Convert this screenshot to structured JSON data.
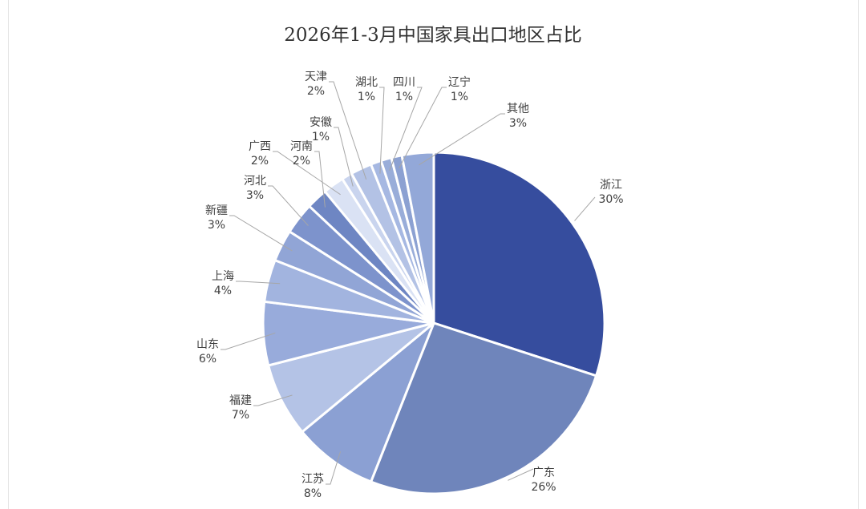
{
  "chart_data": {
    "type": "pie",
    "title": "2026年1-3月中国家具出口地区占比",
    "slices": [
      {
        "name": "浙江",
        "value": 30,
        "label": "30%",
        "color": "#364d9e"
      },
      {
        "name": "广东",
        "value": 26,
        "label": "26%",
        "color": "#6f85bb"
      },
      {
        "name": "江苏",
        "value": 8,
        "label": "8%",
        "color": "#8ba0d3"
      },
      {
        "name": "福建",
        "value": 7,
        "label": "7%",
        "color": "#b4c3e6"
      },
      {
        "name": "山东",
        "value": 6,
        "label": "6%",
        "color": "#98abdb"
      },
      {
        "name": "上海",
        "value": 4,
        "label": "4%",
        "color": "#a2b4df"
      },
      {
        "name": "新疆",
        "value": 3,
        "label": "3%",
        "color": "#91a5d6"
      },
      {
        "name": "河北",
        "value": 3,
        "label": "3%",
        "color": "#7d93cc"
      },
      {
        "name": "河南",
        "value": 2,
        "label": "2%",
        "color": "#6e86c3"
      },
      {
        "name": "广西",
        "value": 2,
        "label": "2%",
        "color": "#dae2f4"
      },
      {
        "name": "安徽",
        "value": 1,
        "label": "1%",
        "color": "#c9d4ee"
      },
      {
        "name": "天津",
        "value": 2,
        "label": "2%",
        "color": "#b3c2e5"
      },
      {
        "name": "湖北",
        "value": 1,
        "label": "1%",
        "color": "#a6b8e2"
      },
      {
        "name": "四川",
        "value": 1,
        "label": "1%",
        "color": "#99add9"
      },
      {
        "name": "辽宁",
        "value": 1,
        "label": "1%",
        "color": "#8ca1d2"
      },
      {
        "name": "其他",
        "value": 3,
        "label": "3%",
        "color": "#93a8d8"
      }
    ],
    "legend": "none",
    "data_labels": "outside-with-leader-lines"
  }
}
